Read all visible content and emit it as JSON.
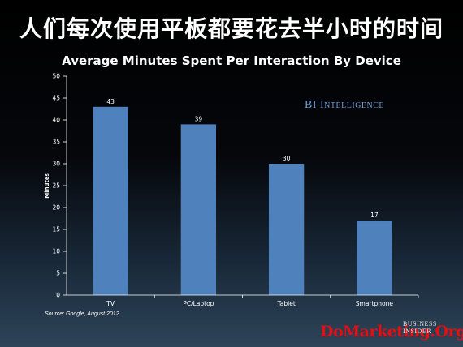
{
  "headline": "人们每次使用平板都要花去半小时的时间",
  "brand": "BI Intelligence",
  "source": "Source: Google, August 2012",
  "publisher": "BUSINESS\nINSIDER",
  "watermark": "DoMarketing.Org",
  "colors": {
    "bar": "#4f81bd",
    "brand": "#6f9fd8",
    "watermark": "#e30f14"
  },
  "chart_data": {
    "type": "bar",
    "title": "Average Minutes Spent Per Interaction By Device",
    "xlabel": "",
    "ylabel": "Minutes",
    "categories": [
      "TV",
      "PC/Laptop",
      "Tablet",
      "Smartphone"
    ],
    "values": [
      43,
      39,
      30,
      17
    ],
    "ylim": [
      0,
      50
    ],
    "yticks": [
      0,
      5,
      10,
      15,
      20,
      25,
      30,
      35,
      40,
      45,
      50
    ],
    "grid": false,
    "legend": "none"
  }
}
